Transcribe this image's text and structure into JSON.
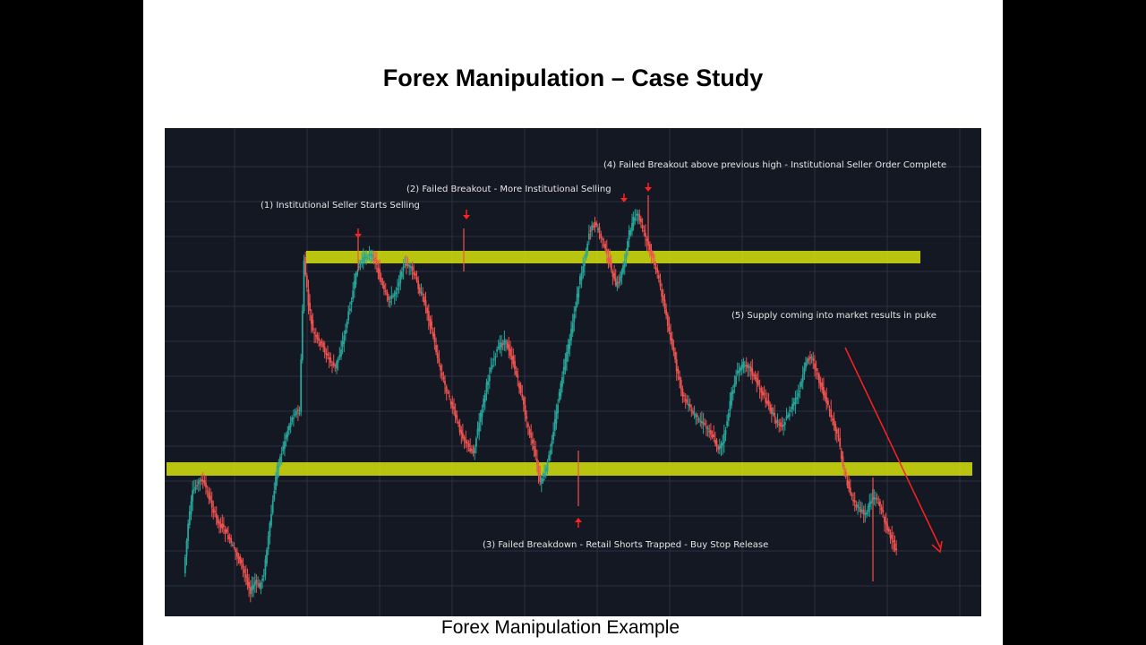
{
  "slide": {
    "title": "Forex Manipulation –  Case Study",
    "caption": "Forex Manipulation Example"
  },
  "colors": {
    "background": "#141823",
    "grid": "#2b3140",
    "zone": "#c8d40f",
    "bull": "#26a69a",
    "bear": "#ef5350",
    "arrow": "#ff2020",
    "annotation_text": "#e6e6e6"
  },
  "chart_data": {
    "type": "candlestick",
    "grid": true,
    "annotations": [
      {
        "id": "ann1",
        "text": "(1)  Institutional Seller Starts Selling",
        "arrow": "down"
      },
      {
        "id": "ann2",
        "text": "(2) Failed Breakout - More Institutional Selling",
        "arrow": "down"
      },
      {
        "id": "ann3",
        "text": "(3) Failed Breakdown - Retail Shorts Trapped - Buy Stop Release",
        "arrow": "up"
      },
      {
        "id": "ann4",
        "text": "(4) Failed Breakout above previous high - Institutional Seller Order Complete",
        "arrow": "down"
      },
      {
        "id": "ann5",
        "text": "(5) Supply coming into market results in puke",
        "arrow": "diagonal-down"
      }
    ],
    "zones": [
      {
        "name": "resistance"
      },
      {
        "name": "support"
      }
    ],
    "price_path": [
      640,
      585,
      550,
      540,
      535,
      545,
      560,
      575,
      585,
      590,
      600,
      610,
      620,
      630,
      645,
      660,
      650,
      655,
      640,
      600,
      560,
      520,
      505,
      485,
      470,
      460,
      460,
      290,
      340,
      370,
      380,
      385,
      395,
      405,
      410,
      395,
      375,
      350,
      325,
      300,
      290,
      285,
      285,
      290,
      310,
      325,
      335,
      330,
      320,
      300,
      295,
      300,
      310,
      325,
      335,
      355,
      375,
      400,
      420,
      435,
      450,
      465,
      480,
      490,
      500,
      505,
      480,
      455,
      430,
      410,
      395,
      385,
      380,
      390,
      405,
      425,
      445,
      470,
      490,
      510,
      540,
      530,
      510,
      480,
      450,
      420,
      395,
      370,
      340,
      310,
      290,
      260,
      250,
      255,
      270,
      285,
      300,
      320,
      310,
      290,
      260,
      245,
      240,
      255,
      270,
      285,
      300,
      320,
      345,
      370,
      395,
      420,
      440,
      450,
      460,
      465,
      470,
      475,
      480,
      490,
      500,
      495,
      470,
      440,
      420,
      410,
      405,
      410,
      420,
      430,
      440,
      450,
      460,
      470,
      475,
      470,
      460,
      450,
      440,
      420,
      400,
      398,
      415,
      430,
      445,
      460,
      475,
      490,
      520,
      540,
      555,
      565,
      570,
      575,
      560,
      555,
      560,
      575,
      590,
      605,
      615
    ]
  }
}
